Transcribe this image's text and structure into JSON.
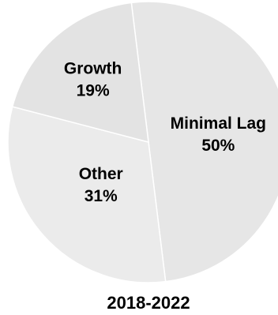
{
  "chart_data": {
    "type": "pie",
    "title": "2018-2022",
    "slices": [
      {
        "label": "Minimal Lag",
        "value": 50,
        "value_label": "50%",
        "color": "#e6e6e6"
      },
      {
        "label": "Other",
        "value": 31,
        "value_label": "31%",
        "color": "#ebebeb"
      },
      {
        "label": "Growth",
        "value": 19,
        "value_label": "19%",
        "color": "#e3e3e3"
      }
    ],
    "edge_color": "#ffffff"
  }
}
